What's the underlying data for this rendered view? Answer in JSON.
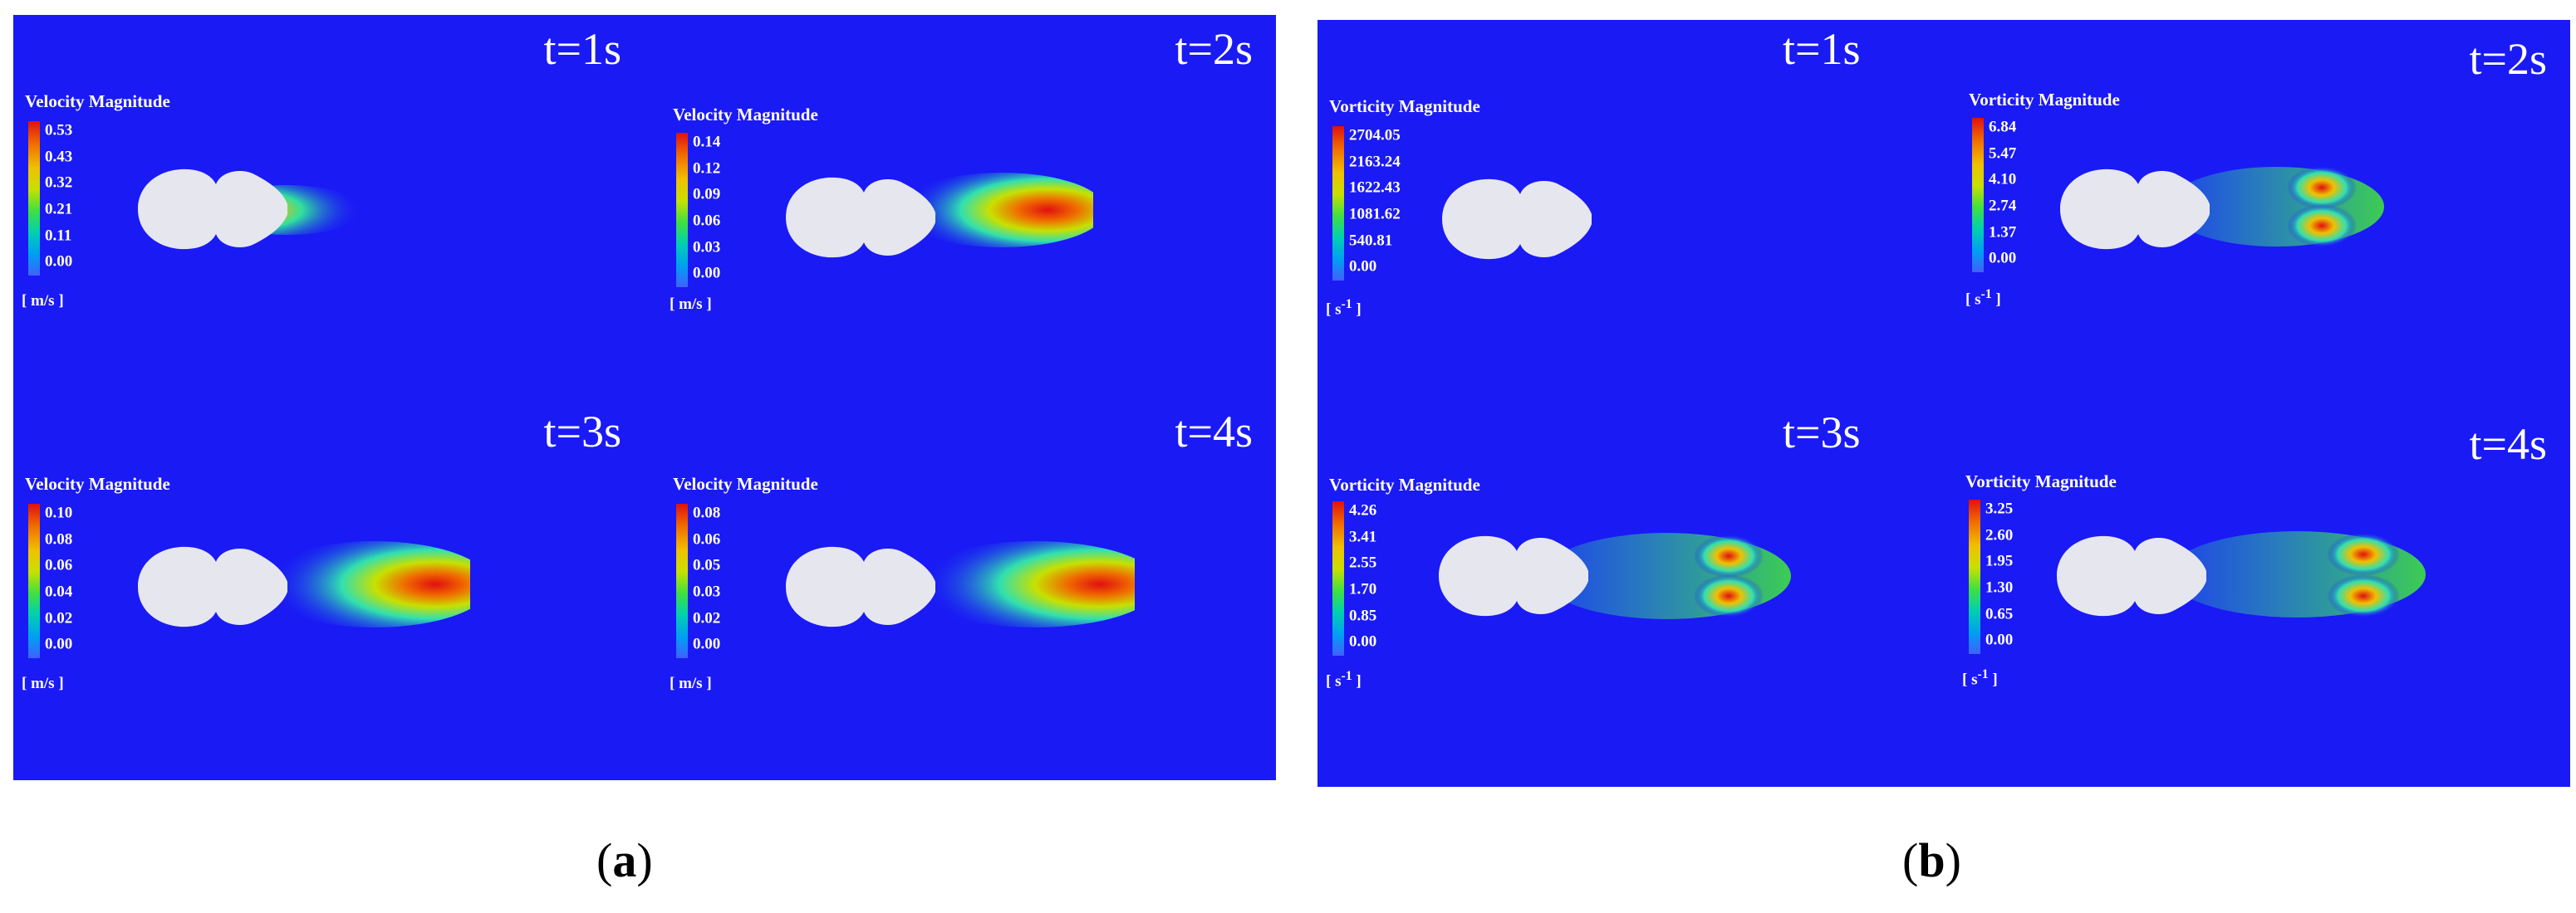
{
  "panel_a": {
    "caption_label": "a",
    "legend_title": "Velocity Magnitude",
    "unit": "[ m/s ]",
    "frames": [
      {
        "time": "t=1s",
        "ticks": [
          "0.53",
          "0.43",
          "0.32",
          "0.21",
          "0.11",
          "0.00"
        ]
      },
      {
        "time": "t=2s",
        "ticks": [
          "0.14",
          "0.12",
          "0.09",
          "0.06",
          "0.03",
          "0.00"
        ]
      },
      {
        "time": "t=3s",
        "ticks": [
          "0.10",
          "0.08",
          "0.06",
          "0.04",
          "0.02",
          "0.00"
        ]
      },
      {
        "time": "t=4s",
        "ticks": [
          "0.08",
          "0.06",
          "0.05",
          "0.03",
          "0.02",
          "0.00"
        ]
      }
    ]
  },
  "panel_b": {
    "caption_label": "b",
    "legend_title": "Vorticity Magnitude",
    "unit_base": "s",
    "unit_exp": "-1",
    "frames": [
      {
        "time": "t=1s",
        "ticks": [
          "2704.05",
          "2163.24",
          "1622.43",
          "1081.62",
          "540.81",
          "0.00"
        ]
      },
      {
        "time": "t=2s",
        "ticks": [
          "6.84",
          "5.47",
          "4.10",
          "2.74",
          "1.37",
          "0.00"
        ]
      },
      {
        "time": "t=3s",
        "ticks": [
          "4.26",
          "3.41",
          "2.55",
          "1.70",
          "0.85",
          "0.00"
        ]
      },
      {
        "time": "t=4s",
        "ticks": [
          "3.25",
          "2.60",
          "1.95",
          "1.30",
          "0.65",
          "0.00"
        ]
      }
    ]
  },
  "colors": {
    "background": "#1a1af5",
    "body": "#e6e6ef",
    "text": "#ffffff"
  }
}
